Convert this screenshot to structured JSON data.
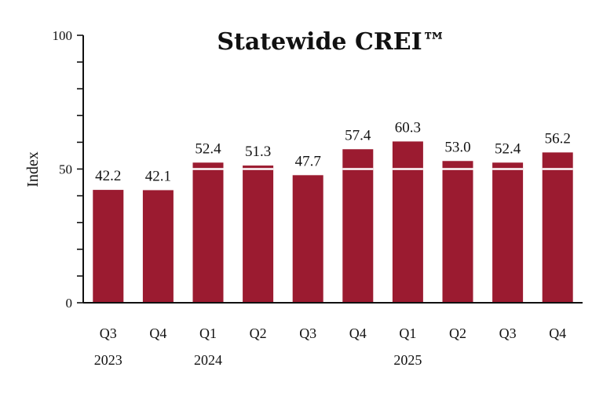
{
  "chart_data": {
    "type": "bar",
    "title": "Statewide CREI™",
    "ylabel": "Index",
    "xlabel": "",
    "ylim": [
      0,
      100
    ],
    "yticks": [
      0,
      50,
      100
    ],
    "minor_tick_step": 10,
    "reference_line": 50,
    "categories": [
      "Q3",
      "Q4",
      "Q1",
      "Q2",
      "Q3",
      "Q4",
      "Q1",
      "Q2",
      "Q3",
      "Q4"
    ],
    "year_labels": [
      {
        "label": "2023",
        "index": 0
      },
      {
        "label": "2024",
        "index": 2
      },
      {
        "label": "2025",
        "index": 6
      }
    ],
    "values": [
      42.2,
      42.1,
      52.4,
      51.3,
      47.7,
      57.4,
      60.3,
      53.0,
      52.4,
      56.2
    ],
    "value_labels": [
      "42.2",
      "42.1",
      "52.4",
      "51.3",
      "47.7",
      "57.4",
      "60.3",
      "53.0",
      "52.4",
      "56.2"
    ],
    "bar_color": "#9b1b30",
    "reference_line_color": "#ffffff",
    "grid": false,
    "legend": "none"
  }
}
